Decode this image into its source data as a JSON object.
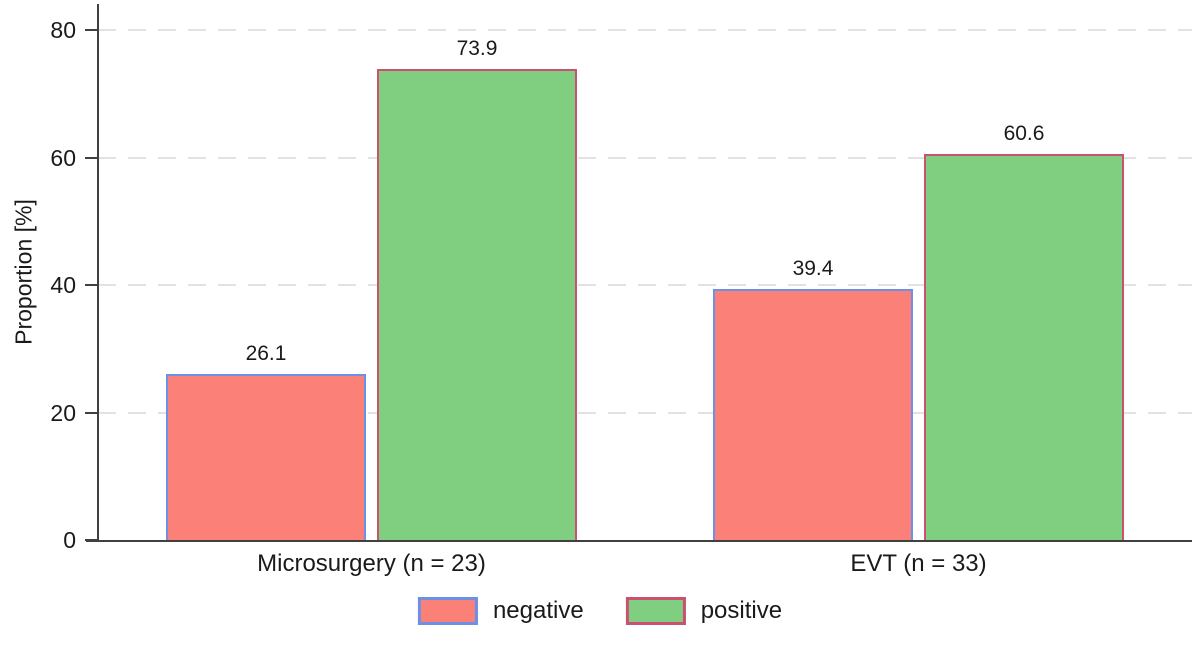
{
  "chart_data": {
    "type": "bar",
    "title": "",
    "ylabel": "Proportion [%]",
    "xlabel": "",
    "ylim": [
      0,
      84
    ],
    "yticks": [
      0,
      20,
      40,
      60,
      80
    ],
    "grid": "horizontal-dashed",
    "legend_position": "bottom-center",
    "categories": [
      "Microsurgery (n = 23)",
      "EVT (n = 33)"
    ],
    "series": [
      {
        "name": "negative",
        "values": [
          26.1,
          39.4
        ],
        "value_labels": [
          "26.1",
          "39.4"
        ],
        "fill_color": "#FA8078",
        "border_color": "#6C8FE8"
      },
      {
        "name": "positive",
        "values": [
          73.9,
          60.6
        ],
        "value_labels": [
          "73.9",
          "60.6"
        ],
        "fill_color": "#80CE80",
        "border_color": "#CC5170"
      }
    ],
    "colors": {
      "axis": "#404040",
      "gridline": "#E2E2E2",
      "text": "#1A1A1A",
      "background": "#FFFFFF"
    }
  }
}
